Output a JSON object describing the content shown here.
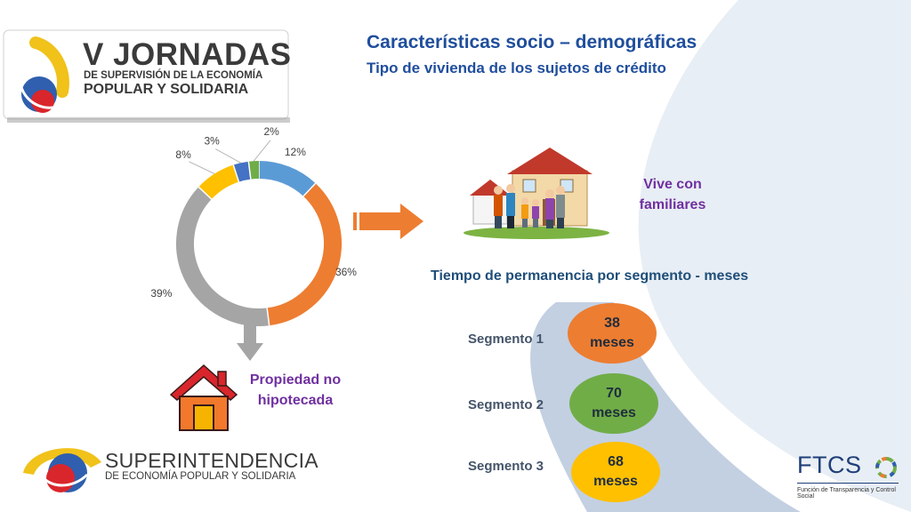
{
  "header": {
    "event_title": "V JORNADAS",
    "event_line2": "DE SUPERVISIÓN DE LA ECONOMÍA",
    "event_line3": "POPULAR Y SOLIDARIA",
    "title": "Características socio – demográficas",
    "subtitle": "Tipo de vivienda de los sujetos de crédito"
  },
  "chart_data": {
    "type": "pie",
    "variant": "donut",
    "values": [
      12,
      36,
      39,
      8,
      3,
      2
    ],
    "labels": [
      "12%",
      "36%",
      "39%",
      "8%",
      "3%",
      "2%"
    ],
    "colors": [
      "#5b9bd5",
      "#ed7d31",
      "#a5a5a5",
      "#ffc000",
      "#4472c4",
      "#70ad47"
    ]
  },
  "callouts": {
    "family": "Vive con familiares",
    "property": "Propiedad no hipotecada"
  },
  "segments": {
    "heading": "Tiempo de permanencia por segmento - meses",
    "items": [
      {
        "label": "Segmento 1",
        "value": "38",
        "unit": "meses",
        "color": "#ed7d31"
      },
      {
        "label": "Segmento 2",
        "value": "70",
        "unit": "meses",
        "color": "#70ad47"
      },
      {
        "label": "Segmento 3",
        "value": "68",
        "unit": "meses",
        "color": "#ffc000"
      }
    ]
  },
  "footer": {
    "org_line1": "SUPERINTENDENCIA",
    "org_line2": "DE ECONOMÍA POPULAR Y SOLIDARIA",
    "brand": "FTCS",
    "brand_sub": "Función de Transparencia y Control Social"
  }
}
